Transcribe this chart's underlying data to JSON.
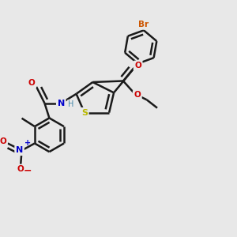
{
  "background_color": "#e8e8e8",
  "bond_color": "#1a1a1a",
  "bond_width": 1.8,
  "atom_colors": {
    "S": "#b8b800",
    "N": "#0000cc",
    "O": "#cc0000",
    "Br": "#cc5500",
    "H": "#4488aa",
    "C": "#1a1a1a"
  },
  "font": "DejaVu Sans"
}
